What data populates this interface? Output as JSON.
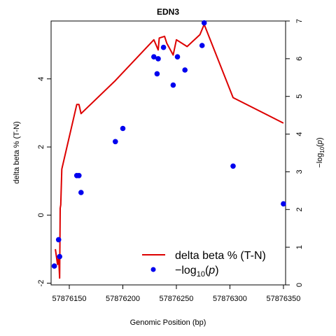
{
  "chart_data": {
    "type": "line",
    "title": "EDN3",
    "xlabel": "Genomic Position (bp)",
    "ylabel": "delta beta % (T-N)",
    "y2label": "-log10(p)",
    "xlim": [
      57876133,
      57876352
    ],
    "ylim": [
      -2.05,
      5.7
    ],
    "y2lim": [
      0,
      7
    ],
    "x_ticks": [
      57876150,
      57876200,
      57876250,
      57876300,
      57876350
    ],
    "y_ticks": [
      -2,
      0,
      2,
      4
    ],
    "y2_ticks": [
      0,
      1,
      2,
      3,
      4,
      5,
      6,
      7
    ],
    "grid": false,
    "legend_position": "bottom-right",
    "colors": {
      "line": "#dd0000",
      "points": "#0000ee"
    },
    "series": [
      {
        "name": "delta beta % (T-N)",
        "type": "line",
        "axis": "left",
        "x": [
          57876137,
          57876139,
          57876140,
          57876141,
          57876141.5,
          57876142,
          57876143,
          57876157,
          57876159,
          57876161,
          57876193,
          57876229,
          57876233,
          57876234,
          57876239,
          57876241,
          57876247,
          57876250,
          57876260,
          57876272,
          57876276,
          57876303,
          57876350
        ],
        "y": [
          -1.0,
          -1.45,
          -1.2,
          -1.85,
          0.2,
          0.3,
          1.35,
          3.25,
          3.25,
          2.98,
          3.95,
          5.15,
          4.85,
          5.2,
          5.25,
          5.05,
          4.7,
          5.15,
          4.95,
          5.3,
          5.6,
          3.45,
          2.7
        ]
      },
      {
        "name": "-log10(p)",
        "type": "scatter",
        "axis": "right",
        "x": [
          57876136,
          57876140,
          57876141,
          57876157,
          57876159,
          57876161,
          57876193,
          57876200,
          57876229,
          57876232,
          57876233,
          57876238,
          57876247,
          57876251,
          57876258,
          57876274,
          57876276,
          57876303,
          57876350
        ],
        "y": [
          0.5,
          1.2,
          0.75,
          2.9,
          2.9,
          2.45,
          3.8,
          4.15,
          6.05,
          5.6,
          6.0,
          6.3,
          5.3,
          6.05,
          5.7,
          6.35,
          6.95,
          3.15,
          2.15
        ]
      }
    ]
  }
}
